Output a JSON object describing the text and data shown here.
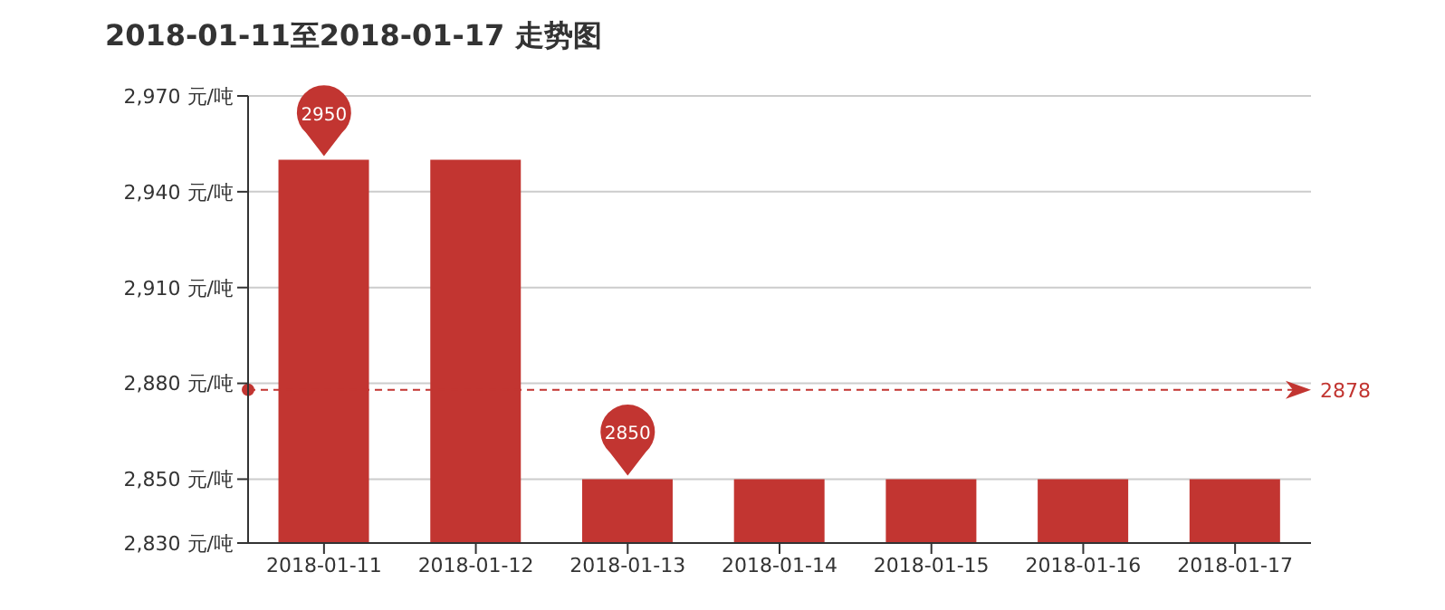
{
  "chart_data": {
    "type": "bar",
    "title": "2018-01-11至2018-01-17 走势图",
    "categories": [
      "2018-01-11",
      "2018-01-12",
      "2018-01-13",
      "2018-01-14",
      "2018-01-15",
      "2018-01-16",
      "2018-01-17"
    ],
    "values": [
      2950,
      2950,
      2850,
      2850,
      2850,
      2850,
      2850
    ],
    "color": "#c23531",
    "ylim": [
      2830,
      2970
    ],
    "yticks": [
      {
        "value": 2830,
        "label": "2,830 元/吨"
      },
      {
        "value": 2850,
        "label": "2,850 元/吨"
      },
      {
        "value": 2880,
        "label": "2,880 元/吨"
      },
      {
        "value": 2910,
        "label": "2,910 元/吨"
      },
      {
        "value": 2940,
        "label": "2,940 元/吨"
      },
      {
        "value": 2970,
        "label": "2,970 元/吨"
      }
    ],
    "grid": "y",
    "legend": false,
    "annotations": [
      {
        "text": "2950",
        "x": "2018-01-11",
        "y": 2950
      },
      {
        "text": "2850",
        "x": "2018-01-13",
        "y": 2850
      }
    ],
    "ref_lines": [
      {
        "axis": "y",
        "value": 2878,
        "label": "2878",
        "color": "#c23531",
        "line_style": "dashed"
      }
    ]
  }
}
